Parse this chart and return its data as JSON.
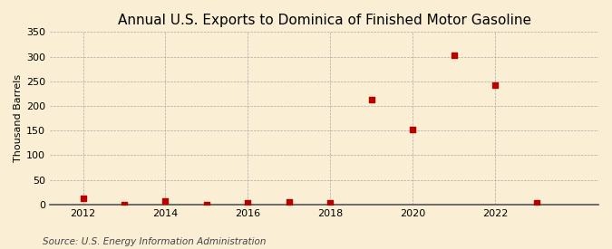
{
  "title": "Annual U.S. Exports to Dominica of Finished Motor Gasoline",
  "ylabel": "Thousand Barrels",
  "source": "Source: U.S. Energy Information Administration",
  "background_color": "#faefd4",
  "years": [
    2012,
    2013,
    2014,
    2015,
    2016,
    2017,
    2018,
    2019,
    2020,
    2021,
    2022,
    2023
  ],
  "values": [
    13,
    0,
    7,
    0,
    3,
    5,
    3,
    212,
    153,
    302,
    243,
    3
  ],
  "marker_color": "#bb0000",
  "marker_size": 4,
  "ylim": [
    0,
    350
  ],
  "yticks": [
    0,
    50,
    100,
    150,
    200,
    250,
    300,
    350
  ],
  "xticks": [
    2012,
    2014,
    2016,
    2018,
    2020,
    2022
  ],
  "xlim": [
    2011.2,
    2024.5
  ],
  "grid_color": "#aaaaaa",
  "title_fontsize": 11,
  "axis_fontsize": 8,
  "source_fontsize": 7.5
}
